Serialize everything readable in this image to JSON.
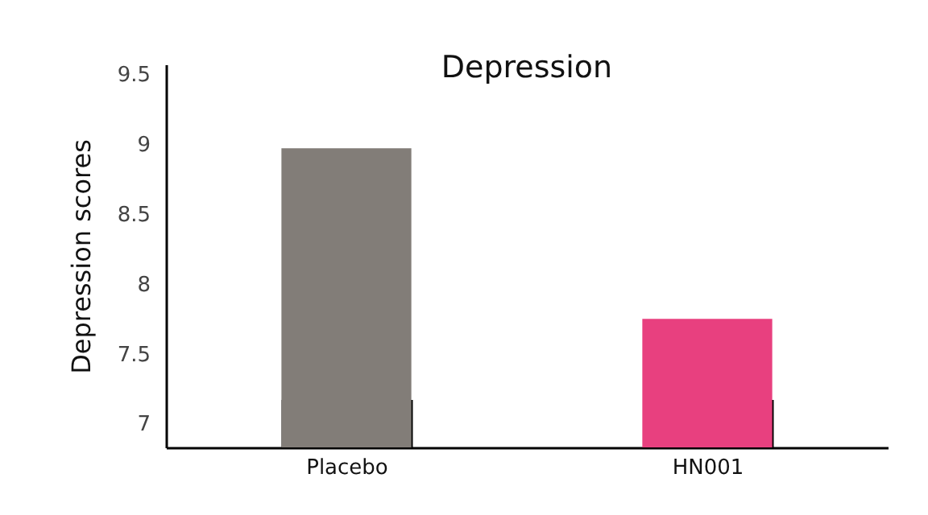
{
  "chart_data": {
    "type": "bar",
    "title": "Depression",
    "ylabel": "Depression scores",
    "categories": [
      "Placebo",
      "HN001"
    ],
    "values": [
      8.97,
      7.75
    ],
    "colors": [
      "#827d78",
      "#e8407f"
    ],
    "ylim": [
      6.83,
      9.57
    ],
    "yticks": [
      7,
      7.5,
      8,
      8.5,
      9,
      9.5
    ],
    "grid": false,
    "legend": false
  }
}
